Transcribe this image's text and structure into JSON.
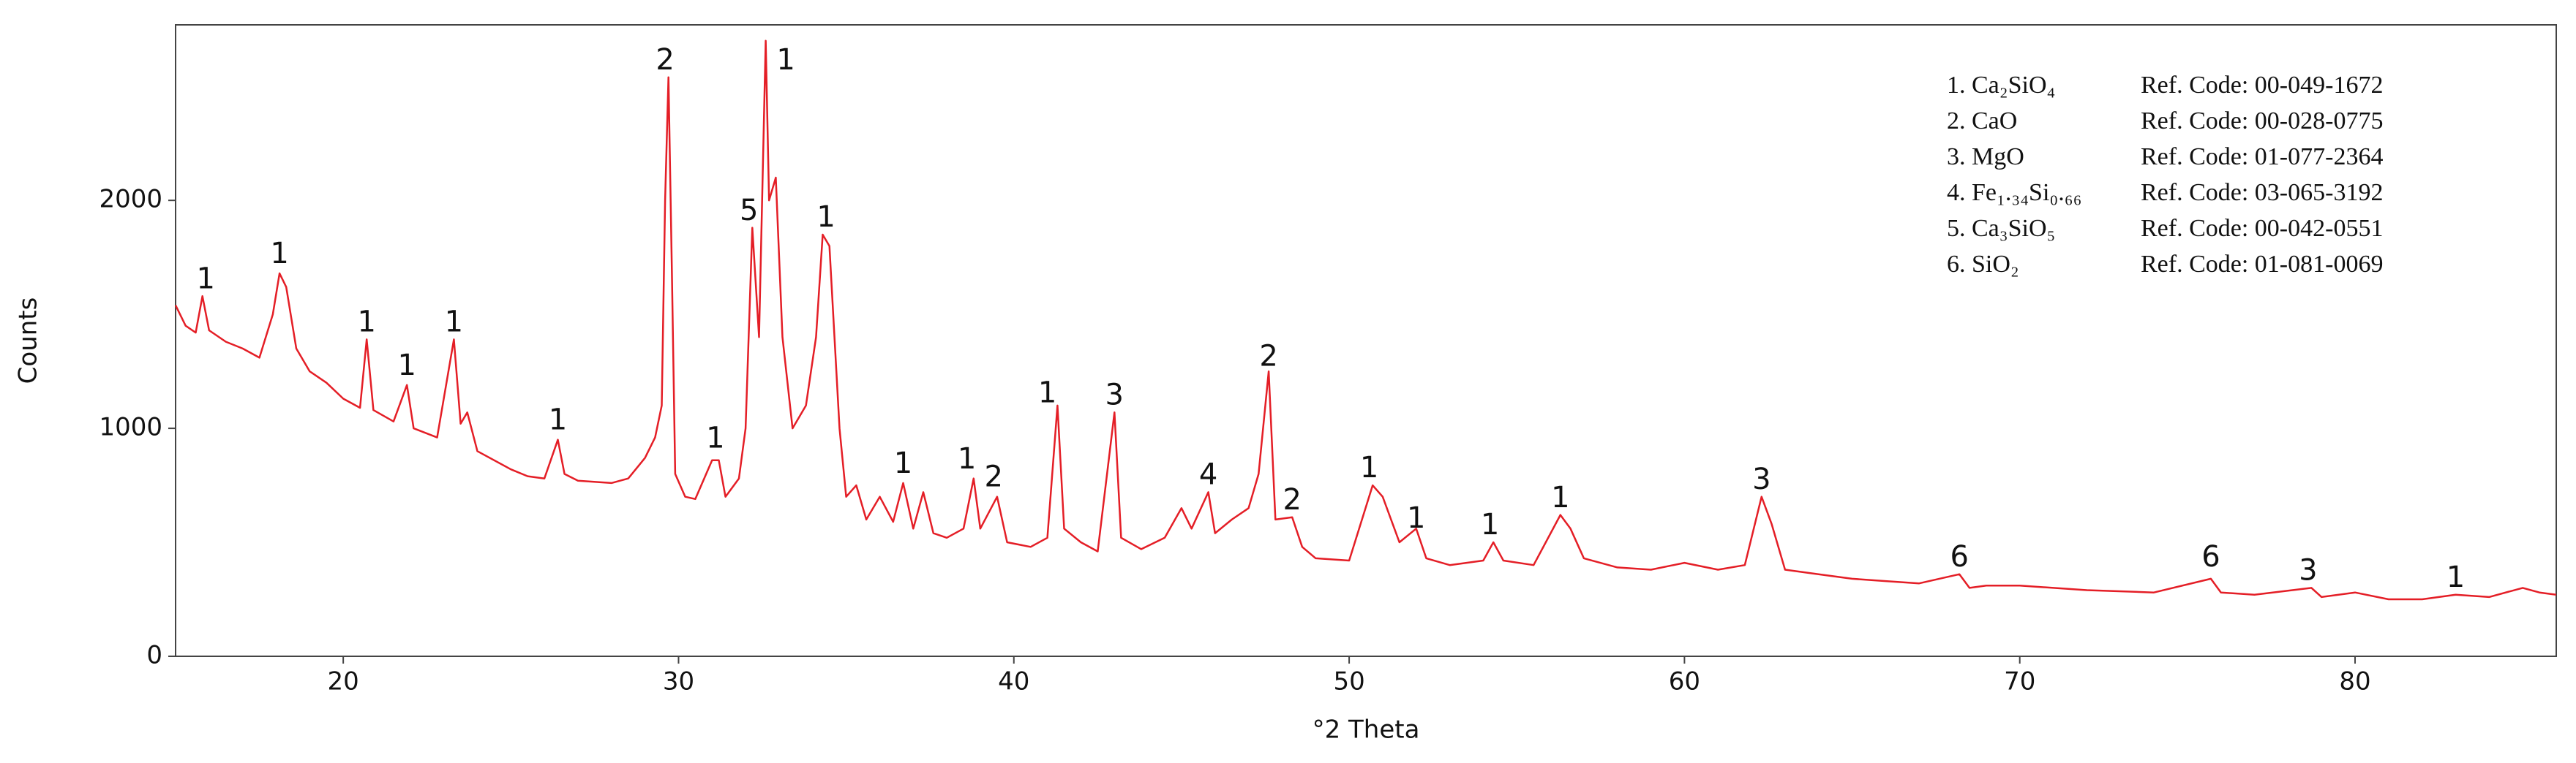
{
  "chart_data": {
    "type": "line",
    "x_label": "°2 Theta",
    "y_label": "Counts",
    "color": "#e41e26",
    "xlim": [
      15,
      86
    ],
    "ylim": [
      0,
      2770
    ],
    "xticks": [
      20,
      30,
      40,
      50,
      60,
      70,
      80
    ],
    "yticks": [
      0,
      1000,
      2000
    ],
    "grid": false,
    "x": [
      15.0,
      15.3,
      15.6,
      15.8,
      16.0,
      16.5,
      17.0,
      17.5,
      17.9,
      18.1,
      18.3,
      18.6,
      19.0,
      19.5,
      20.0,
      20.5,
      20.7,
      20.9,
      21.5,
      21.9,
      22.1,
      22.8,
      23.3,
      23.5,
      23.7,
      24.0,
      25.0,
      25.5,
      26.0,
      26.4,
      26.6,
      27.0,
      28.0,
      28.5,
      29.0,
      29.3,
      29.5,
      29.6,
      29.7,
      29.8,
      29.9,
      30.2,
      30.5,
      31.0,
      31.2,
      31.4,
      31.8,
      32.0,
      32.2,
      32.4,
      32.6,
      32.7,
      32.9,
      33.1,
      33.4,
      33.8,
      34.1,
      34.3,
      34.5,
      34.8,
      35.0,
      35.3,
      35.6,
      36.0,
      36.4,
      36.7,
      37.0,
      37.3,
      37.6,
      38.0,
      38.5,
      38.8,
      39.0,
      39.5,
      39.8,
      40.5,
      41.0,
      41.3,
      41.5,
      42.0,
      42.5,
      43.0,
      43.2,
      43.8,
      44.5,
      45.0,
      45.3,
      45.8,
      46.0,
      46.5,
      47.0,
      47.3,
      47.6,
      47.8,
      48.3,
      48.6,
      49.0,
      50.0,
      50.7,
      51.0,
      51.5,
      52.0,
      52.3,
      53.0,
      54.0,
      54.3,
      54.6,
      55.5,
      56.3,
      56.6,
      57.0,
      58.0,
      59.0,
      60.0,
      61.0,
      61.8,
      62.3,
      62.6,
      63.0,
      64.0,
      65.0,
      66.0,
      67.0,
      68.2,
      68.5,
      69.0,
      70.0,
      72.0,
      74.0,
      75.7,
      76.0,
      77.0,
      78.7,
      79.0,
      80.0,
      81.0,
      82.0,
      83.0,
      84.0,
      85.0,
      85.5,
      86.0
    ],
    "values": [
      1540,
      1450,
      1420,
      1580,
      1430,
      1380,
      1350,
      1310,
      1500,
      1680,
      1620,
      1350,
      1250,
      1200,
      1130,
      1090,
      1390,
      1080,
      1030,
      1190,
      1000,
      960,
      1390,
      1020,
      1070,
      900,
      820,
      790,
      780,
      950,
      800,
      770,
      760,
      780,
      870,
      960,
      1100,
      2000,
      2540,
      1700,
      800,
      700,
      690,
      860,
      860,
      700,
      780,
      1000,
      1880,
      1400,
      2700,
      2000,
      2100,
      1400,
      1000,
      1100,
      1400,
      1850,
      1800,
      1000,
      700,
      750,
      600,
      700,
      590,
      760,
      560,
      720,
      540,
      520,
      560,
      780,
      560,
      700,
      500,
      480,
      520,
      1100,
      560,
      500,
      460,
      1070,
      520,
      470,
      520,
      650,
      560,
      720,
      540,
      600,
      650,
      800,
      1250,
      600,
      610,
      480,
      430,
      420,
      750,
      700,
      500,
      560,
      430,
      400,
      420,
      500,
      420,
      400,
      620,
      560,
      430,
      390,
      380,
      410,
      380,
      400,
      700,
      580,
      380,
      360,
      340,
      330,
      320,
      360,
      300,
      310,
      310,
      290,
      280,
      340,
      280,
      270,
      300,
      260,
      280,
      250,
      250,
      270,
      260,
      300,
      280,
      270
    ],
    "annotations": [
      {
        "text": "1",
        "x": 15.9,
        "y": 1650
      },
      {
        "text": "1",
        "x": 18.1,
        "y": 1760
      },
      {
        "text": "1",
        "x": 20.7,
        "y": 1460
      },
      {
        "text": "1",
        "x": 21.9,
        "y": 1270
      },
      {
        "text": "1",
        "x": 23.3,
        "y": 1460
      },
      {
        "text": "1",
        "x": 26.4,
        "y": 1030
      },
      {
        "text": "2",
        "x": 29.6,
        "y": 2610
      },
      {
        "text": "1",
        "x": 31.1,
        "y": 950
      },
      {
        "text": "5",
        "x": 32.1,
        "y": 1950
      },
      {
        "text": "1",
        "x": 33.2,
        "y": 2610
      },
      {
        "text": "1",
        "x": 34.4,
        "y": 1920
      },
      {
        "text": "1",
        "x": 36.7,
        "y": 840
      },
      {
        "text": "1",
        "x": 38.6,
        "y": 860
      },
      {
        "text": "2",
        "x": 39.4,
        "y": 780
      },
      {
        "text": "1",
        "x": 41.0,
        "y": 1150
      },
      {
        "text": "3",
        "x": 43.0,
        "y": 1140
      },
      {
        "text": "4",
        "x": 45.8,
        "y": 790
      },
      {
        "text": "2",
        "x": 47.6,
        "y": 1310
      },
      {
        "text": "2",
        "x": 48.3,
        "y": 680
      },
      {
        "text": "1",
        "x": 50.6,
        "y": 820
      },
      {
        "text": "1",
        "x": 52.0,
        "y": 600
      },
      {
        "text": "1",
        "x": 54.2,
        "y": 570
      },
      {
        "text": "1",
        "x": 56.3,
        "y": 690
      },
      {
        "text": "3",
        "x": 62.3,
        "y": 770
      },
      {
        "text": "6",
        "x": 68.2,
        "y": 430
      },
      {
        "text": "6",
        "x": 75.7,
        "y": 430
      },
      {
        "text": "3",
        "x": 78.6,
        "y": 370
      },
      {
        "text": "1",
        "x": 83.0,
        "y": 340
      }
    ],
    "legend": {
      "position": "upper right",
      "entries": [
        {
          "name": "1. Ca₂SiO₄",
          "ref": "Ref. Code: 00-049-1672"
        },
        {
          "name": "2. CaO",
          "ref": "Ref. Code: 00-028-0775"
        },
        {
          "name": "3. MgO",
          "ref": "Ref. Code: 01-077-2364"
        },
        {
          "name": "4. Fe₁.₃₄Si₀.₆₆",
          "ref": "Ref. Code: 03-065-3192"
        },
        {
          "name": "5. Ca₃SiO₅",
          "ref": "Ref. Code: 00-042-0551"
        },
        {
          "name": "6. SiO₂",
          "ref": "Ref. Code: 01-081-0069"
        }
      ]
    }
  }
}
